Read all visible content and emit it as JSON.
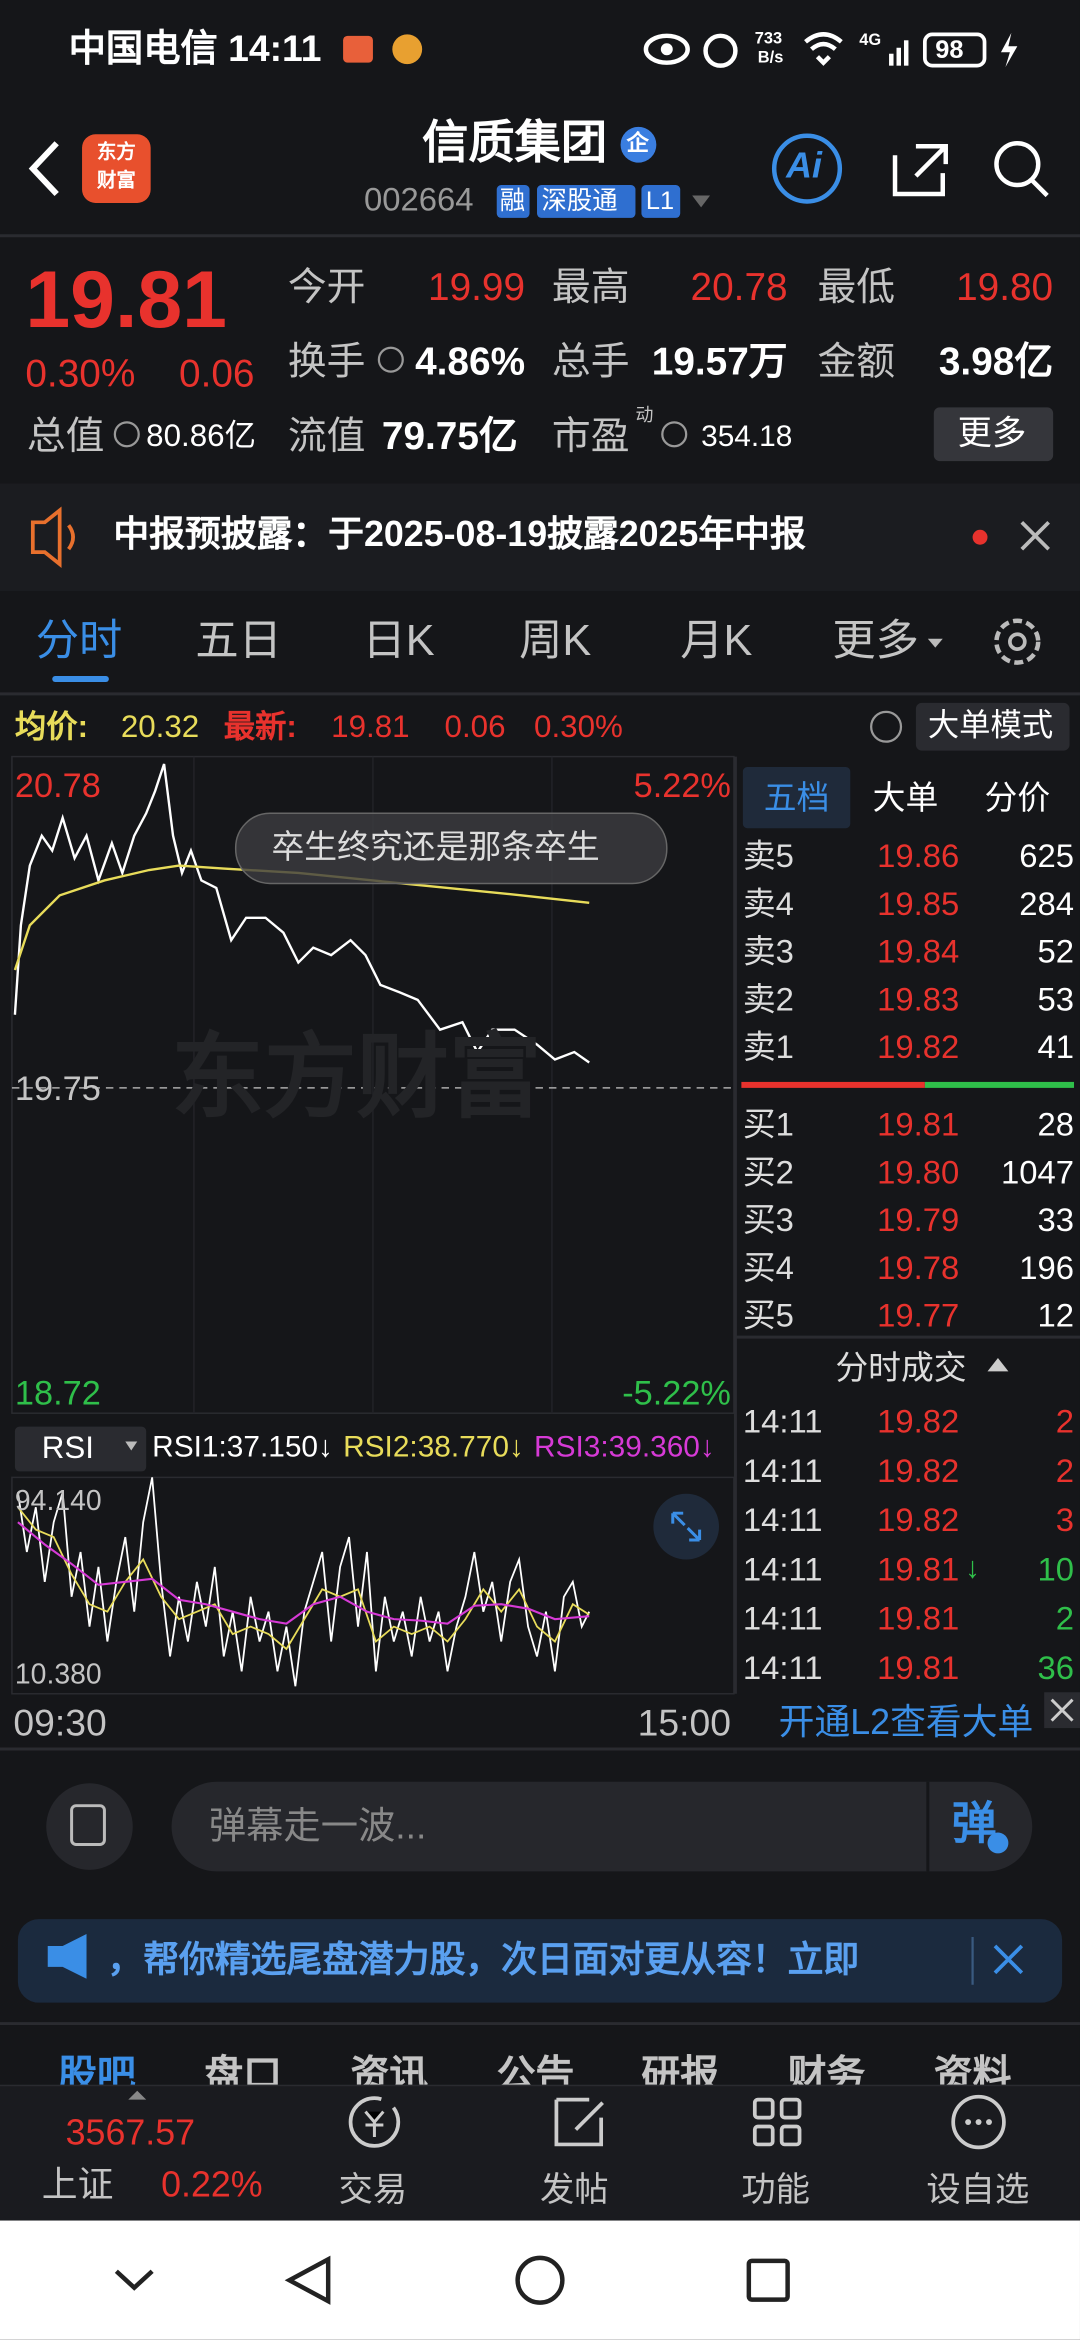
{
  "status_bar": {
    "carrier_time": "中国电信 14:11",
    "net_speed": "733",
    "net_unit": "B/s",
    "network": "4G",
    "battery": "98"
  },
  "header": {
    "logo_top": "东方",
    "logo_bottom": "财富",
    "title": "信质集团",
    "badge": "企",
    "code": "002664",
    "tags": [
      "融",
      "深股通",
      "L1"
    ],
    "ai": "Ai"
  },
  "quote": {
    "price": "19.81",
    "change_pct": "0.30%",
    "change": "0.06",
    "open_label": "今开",
    "open": "19.99",
    "high_label": "最高",
    "high": "20.78",
    "low_label": "最低",
    "low": "19.80",
    "turnover_label": "换手",
    "turnover": "4.86%",
    "volume_label": "总手",
    "volume": "19.57万",
    "amount_label": "金额",
    "amount": "3.98亿",
    "mcap_label": "总值",
    "mcap": "80.86亿",
    "float_label": "流值",
    "float_cap": "79.75亿",
    "pe_label": "市盈",
    "pe_sup": "动",
    "pe": "354.18",
    "more": "更多"
  },
  "notice": {
    "text": "中报预披露：于2025-08-19披露2025年中报"
  },
  "tabs": [
    "分时",
    "五日",
    "日K",
    "周K",
    "月K",
    "更多"
  ],
  "chart": {
    "avg_label": "均价:",
    "avg": "20.32",
    "last_label": "最新:",
    "last": "19.81",
    "change": "0.06",
    "change_pct": "0.30%",
    "mode_button": "大单模式",
    "top_price": "20.78",
    "top_pct": "5.22%",
    "mid_price": "19.75",
    "bottom_price": "18.72",
    "bottom_pct": "-5.22%",
    "watermark": "东方财富",
    "bubble": "卒生终究还是那条卒生",
    "time_start": "09:30",
    "time_end": "15:00"
  },
  "rsi": {
    "name": "RSI",
    "rsi1": "RSI1:37.150↓",
    "rsi2": "RSI2:38.770↓",
    "rsi3": "RSI3:39.360↓",
    "top": "94.140",
    "bottom": "10.380"
  },
  "order_book": {
    "tabs": [
      "五档",
      "大单",
      "分价"
    ],
    "asks": [
      [
        "卖5",
        "19.86",
        "625"
      ],
      [
        "卖4",
        "19.85",
        "284"
      ],
      [
        "卖3",
        "19.84",
        "52"
      ],
      [
        "卖2",
        "19.83",
        "53"
      ],
      [
        "卖1",
        "19.82",
        "41"
      ]
    ],
    "bids": [
      [
        "买1",
        "19.81",
        "28"
      ],
      [
        "买2",
        "19.80",
        "1047"
      ],
      [
        "买3",
        "19.79",
        "33"
      ],
      [
        "买4",
        "19.78",
        "196"
      ],
      [
        "买5",
        "19.77",
        "12"
      ]
    ]
  },
  "trades": {
    "title": "分时成交",
    "rows": [
      {
        "time": "14:11",
        "price": "19.82",
        "volume": "2",
        "color": "#e8322d"
      },
      {
        "time": "14:11",
        "price": "19.82",
        "volume": "2",
        "color": "#e8322d"
      },
      {
        "time": "14:11",
        "price": "19.82",
        "volume": "3",
        "color": "#e8322d"
      },
      {
        "time": "14:11",
        "price": "19.81",
        "arrow": "↓",
        "volume": "10",
        "color": "#2fbf4a"
      },
      {
        "time": "14:11",
        "price": "19.81",
        "volume": "2",
        "color": "#2fbf4a"
      },
      {
        "time": "14:11",
        "price": "19.81",
        "volume": "36",
        "color": "#2fbf4a"
      }
    ],
    "l2_link": "开通L2查看大单"
  },
  "comment": {
    "placeholder": "弹幕走一波...",
    "button": "弹"
  },
  "banner": {
    "text": "，帮你精选尾盘潜力股，次日面对更从容！立即"
  },
  "sub_tabs": [
    "股吧",
    "盘口",
    "资讯",
    "公告",
    "研报",
    "财务",
    "资料"
  ],
  "bottom_nav": {
    "index_value": "3567.57",
    "index_name": "上证",
    "index_pct": "0.22%",
    "items": [
      "交易",
      "发帖",
      "功能",
      "设自选"
    ]
  }
}
